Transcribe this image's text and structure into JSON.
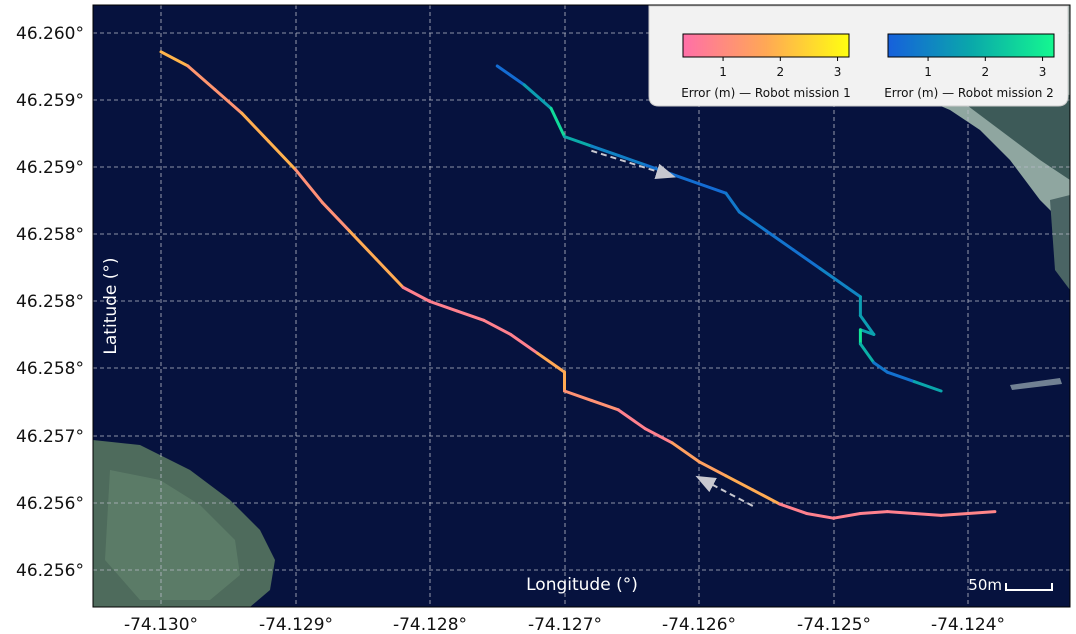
{
  "chart_data": {
    "type": "line",
    "xlabel": "Longitude (°)",
    "ylabel": "Latitude (°)",
    "x_ticks": [
      "-74.130°",
      "-74.129°",
      "-74.128°",
      "-74.127°",
      "-74.126°",
      "-74.125°",
      "-74.124°"
    ],
    "y_ticks": [
      "46.260°",
      "46.259°",
      "46.259°",
      "46.258°",
      "46.258°",
      "46.258°",
      "46.257°",
      "46.256°",
      "46.256°"
    ],
    "grid": true,
    "legend_placement": "top-right",
    "colorbars": [
      {
        "label": "Error (m) — Robot mission 1",
        "ticks": [
          "1",
          "2",
          "3"
        ],
        "range": [
          0.3,
          3.2
        ],
        "colors": [
          "#ff6fa8",
          "#ffa855",
          "#ffff10"
        ]
      },
      {
        "label": "Error (m) — Robot mission 2",
        "ticks": [
          "1",
          "2",
          "3"
        ],
        "range": [
          0.3,
          3.2
        ],
        "colors": [
          "#1660dc",
          "#0aa8aa",
          "#14f890"
        ]
      }
    ],
    "scale_bar": "50m",
    "series": [
      {
        "x": [
          -74.13,
          -74.1298,
          -74.1296,
          -74.1294,
          -74.1292,
          -74.129,
          -74.1288,
          -74.1286,
          -74.1284,
          -74.1282,
          -74.128,
          -74.1278,
          -74.1276,
          -74.1274,
          -74.1272,
          -74.127,
          -74.127,
          -74.1268,
          -74.1266,
          -74.1264,
          -74.1262,
          -74.126,
          -74.1258,
          -74.1256,
          -74.1254,
          -74.1252,
          -74.125,
          -74.1248,
          -74.1246,
          -74.1244,
          -74.1242,
          -74.124,
          -74.1238
        ],
        "y": [
          46.2597,
          46.25955,
          46.2593,
          46.25905,
          46.25875,
          46.25845,
          46.2581,
          46.2578,
          46.2575,
          46.2572,
          46.25705,
          46.25695,
          46.25685,
          46.2567,
          46.2565,
          46.2563,
          46.2561,
          46.256,
          46.2559,
          46.2557,
          46.25555,
          46.25535,
          46.2552,
          46.25505,
          46.2549,
          46.2548,
          46.25475,
          46.2548,
          46.25482,
          46.2548,
          46.25478,
          46.2548,
          46.25482
        ],
        "error": [
          3.1,
          0.8,
          1.8,
          0.7,
          3.0,
          0.8,
          1.5,
          0.8,
          2.8,
          0.8,
          0.7,
          0.8,
          0.7,
          0.8,
          0.7,
          2.8,
          0.8,
          1.6,
          0.8,
          0.7,
          0.8,
          2.3,
          0.8,
          2.8,
          0.8,
          0.7,
          0.8,
          0.7,
          0.8,
          0.7,
          0.8,
          0.9,
          0.8
        ]
      },
      {
        "x": [
          -74.1275,
          -74.1273,
          -74.1271,
          -74.127,
          -74.1268,
          -74.1266,
          -74.1264,
          -74.1262,
          -74.126,
          -74.1258,
          -74.1257,
          -74.1255,
          -74.1253,
          -74.1251,
          -74.1249,
          -74.1248,
          -74.1248,
          -74.1247,
          -74.1248,
          -74.1248,
          -74.1247,
          -74.1246,
          -74.1244,
          -74.1242
        ],
        "y": [
          46.25955,
          46.25935,
          46.2591,
          46.2588,
          46.2587,
          46.2586,
          46.2585,
          46.2584,
          46.2583,
          46.2582,
          46.258,
          46.2578,
          46.2576,
          46.2574,
          46.2572,
          46.2571,
          46.2569,
          46.2567,
          46.25675,
          46.2566,
          46.2564,
          46.2563,
          46.2562,
          46.2561
        ],
        "error": [
          0.5,
          0.6,
          2.5,
          2.8,
          0.8,
          1.2,
          0.6,
          0.7,
          0.5,
          0.6,
          1.0,
          0.6,
          0.8,
          0.5,
          1.5,
          0.6,
          2.5,
          0.6,
          2.7,
          3.0,
          0.8,
          0.7,
          0.6,
          2.8
        ]
      }
    ],
    "arrows": [
      {
        "from": [
          -74.1268,
          46.25865
        ],
        "to": [
          -74.1262,
          46.25838
        ]
      },
      {
        "from": [
          -74.1256,
          46.25488
        ],
        "to": [
          -74.126,
          46.25518
        ]
      }
    ]
  }
}
